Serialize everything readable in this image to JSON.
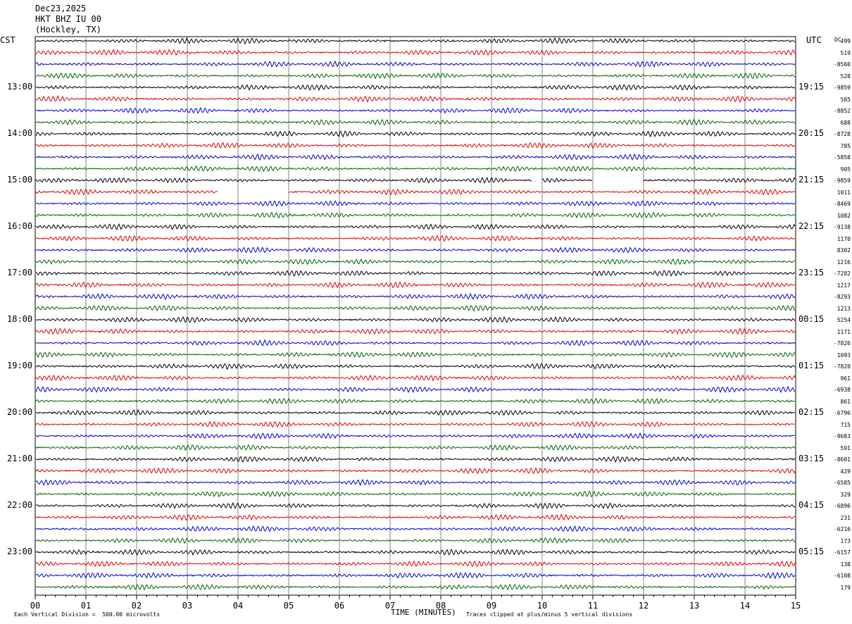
{
  "header": {
    "date": "Dec23,2025",
    "station": "HKT BHZ IU 00",
    "location": "(Hockley, TX)"
  },
  "corner": {
    "left_tz": "CST",
    "right_tz": "UTC",
    "dc_label": "DC"
  },
  "footer": {
    "scale_note": "Each Vertical Division =  500.00 microvolts",
    "clip_note": "Traces clipped at plus/minus 5 vertical divisions",
    "xlabel": "TIME (MINUTES)"
  },
  "chart_data": {
    "type": "line",
    "title": "HKT BHZ IU 00",
    "xlabel": "TIME (MINUTES)",
    "xlim": [
      0,
      15
    ],
    "x_ticks": [
      "00",
      "01",
      "02",
      "03",
      "04",
      "05",
      "06",
      "07",
      "08",
      "09",
      "10",
      "11",
      "12",
      "13",
      "14",
      "15"
    ],
    "row_count": 48,
    "series_colors": [
      "#000000",
      "#e00000",
      "#0000d0",
      "#006400"
    ],
    "left_time_labels": [
      {
        "row": 4,
        "label": "13:00"
      },
      {
        "row": 8,
        "label": "14:00"
      },
      {
        "row": 12,
        "label": "15:00"
      },
      {
        "row": 16,
        "label": "16:00"
      },
      {
        "row": 20,
        "label": "17:00"
      },
      {
        "row": 24,
        "label": "18:00"
      },
      {
        "row": 28,
        "label": "19:00"
      },
      {
        "row": 32,
        "label": "20:00"
      },
      {
        "row": 36,
        "label": "21:00"
      },
      {
        "row": 40,
        "label": "22:00"
      },
      {
        "row": 44,
        "label": "23:00"
      }
    ],
    "right_time_labels": [
      {
        "row": 4,
        "label": "19:15"
      },
      {
        "row": 8,
        "label": "20:15"
      },
      {
        "row": 12,
        "label": "21:15"
      },
      {
        "row": 16,
        "label": "22:15"
      },
      {
        "row": 20,
        "label": "23:15"
      },
      {
        "row": 24,
        "label": "00:15"
      },
      {
        "row": 28,
        "label": "01:15"
      },
      {
        "row": 32,
        "label": "02:15"
      },
      {
        "row": 36,
        "label": "03:15"
      },
      {
        "row": 40,
        "label": "04:15"
      },
      {
        "row": 44,
        "label": "05:15"
      }
    ],
    "dc_offsets": [
      "499",
      "519",
      "-8560",
      "528",
      "-9859",
      "585",
      "-8852",
      "688",
      "-8728",
      "785",
      "-5858",
      "905",
      "-9859",
      "1011",
      "-8469",
      "1082",
      "-9138",
      "1170",
      "8302",
      "1216",
      "-7282",
      "1217",
      "-8293",
      "1213",
      "5254",
      "1171",
      "-7826",
      "1093",
      "-7820",
      "961",
      "-6938",
      "861",
      "-6796",
      "715",
      "-9683",
      "591",
      "-8601",
      "429",
      "-6585",
      "329",
      "-6896",
      "231",
      "-6216",
      "173",
      "-6157",
      "138",
      "-6108",
      "179"
    ],
    "gaps": [
      {
        "row": 12,
        "from": 9.8,
        "to": 10.0
      },
      {
        "row": 12,
        "from": 11.0,
        "to": 12.0
      },
      {
        "row": 13,
        "from": 3.6,
        "to": 5.0
      }
    ]
  }
}
